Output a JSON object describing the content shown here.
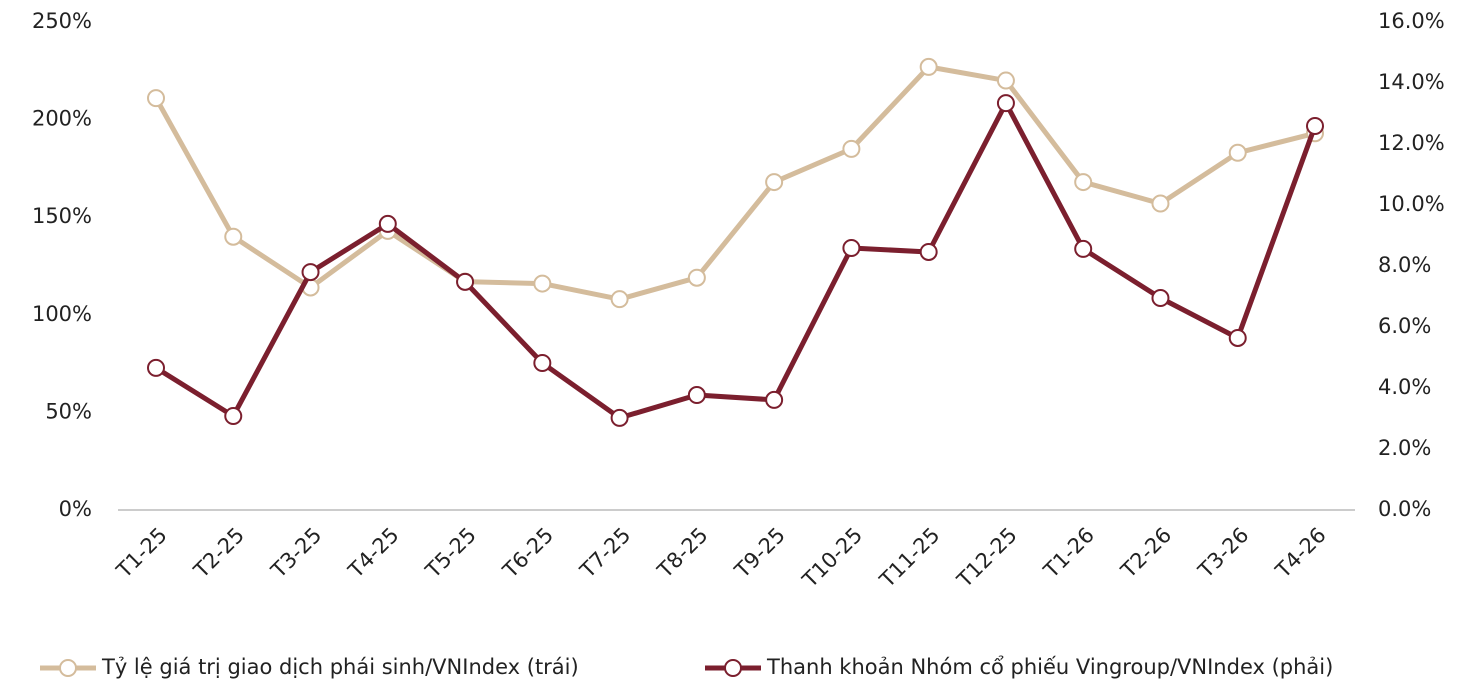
{
  "chart_data": {
    "type": "line",
    "categories": [
      "T1-25",
      "T2-25",
      "T3-25",
      "T4-25",
      "T5-25",
      "T6-25",
      "T7-25",
      "T8-25",
      "T9-25",
      "T10-25",
      "T11-25",
      "T12-25",
      "T1-26",
      "T2-26",
      "T3-26",
      "T4-26"
    ],
    "series": [
      {
        "name": "Tỷ lệ giá trị giao dịch phái sinh/VNIndex (trái)",
        "color": "#d4bc9c",
        "values": [
          211,
          140,
          114,
          143,
          117,
          116,
          108,
          119,
          168,
          185,
          227,
          220,
          168,
          157,
          183,
          193
        ]
      },
      {
        "name": "Thanh khoản Nhóm cổ phiếu Vingroup/VNIndex (phải)",
        "color": "#7b1f2e",
        "axis": "y2",
        "values": [
          4.66,
          3.08,
          7.8,
          9.38,
          7.48,
          4.82,
          3.02,
          3.77,
          3.61,
          8.59,
          8.46,
          13.34,
          8.56,
          6.95,
          5.64,
          12.59
        ]
      }
    ],
    "ylim": [
      0,
      250
    ],
    "yticks": [
      {
        "value": 0,
        "label": "0%"
      },
      {
        "value": 50,
        "label": "50%"
      },
      {
        "value": 100,
        "label": "100%"
      },
      {
        "value": 150,
        "label": "150%"
      },
      {
        "value": 200,
        "label": "200%"
      },
      {
        "value": 250,
        "label": "250%"
      }
    ],
    "y2lim": [
      0,
      16
    ],
    "y2ticks": [
      {
        "value": 0,
        "label": "0.0%"
      },
      {
        "value": 2,
        "label": "2.0%"
      },
      {
        "value": 4,
        "label": "4.0%"
      },
      {
        "value": 6,
        "label": "6.0%"
      },
      {
        "value": 8,
        "label": "8.0%"
      },
      {
        "value": 10,
        "label": "10.0%"
      },
      {
        "value": 12,
        "label": "12.0%"
      },
      {
        "value": 14,
        "label": "14.0%"
      },
      {
        "value": 16,
        "label": "16.0%"
      }
    ],
    "legend": "bottom"
  }
}
